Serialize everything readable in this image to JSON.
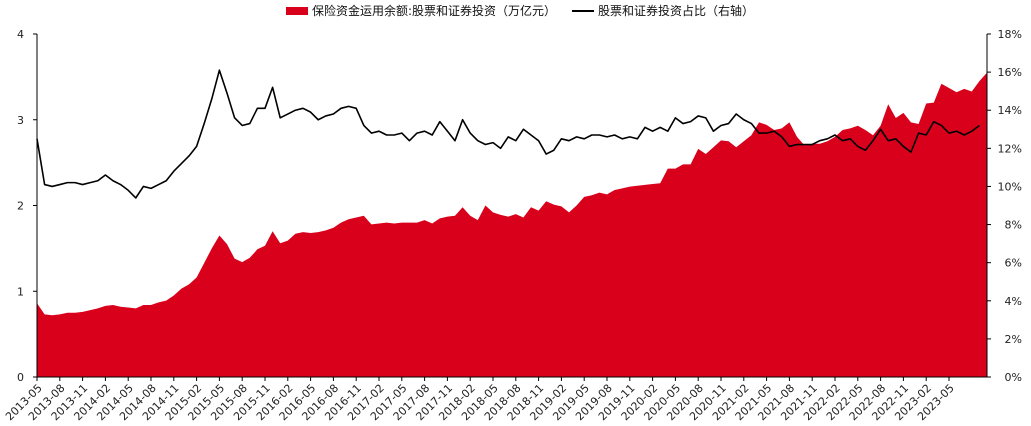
{
  "chart_data": {
    "type": "area+line",
    "title": "",
    "xlabel": "",
    "ylabel": "",
    "ylim_left": [
      0,
      4
    ],
    "yticks_left": [
      "0",
      "1",
      "2",
      "3",
      "4"
    ],
    "ylim_right": [
      0,
      18
    ],
    "yticks_right": [
      "0%",
      "2%",
      "4%",
      "6%",
      "8%",
      "10%",
      "12%",
      "14%",
      "16%",
      "18%"
    ],
    "legend_placement": "top-center",
    "grid": false,
    "x_tick_labels": [
      "2013-05",
      "2013-08",
      "2013-11",
      "2014-02",
      "2014-05",
      "2014-08",
      "2014-11",
      "2015-02",
      "2015-05",
      "2015-08",
      "2015-11",
      "2016-02",
      "2016-05",
      "2016-08",
      "2016-11",
      "2017-02",
      "2017-05",
      "2017-08",
      "2017-11",
      "2018-02",
      "2018-05",
      "2018-08",
      "2018-11",
      "2019-02",
      "2019-05",
      "2019-08",
      "2019-11",
      "2020-02",
      "2020-05",
      "2020-08",
      "2020-11",
      "2021-02",
      "2021-05",
      "2021-08",
      "2021-11",
      "2022-02",
      "2022-05",
      "2022-08",
      "2022-11",
      "2023-02",
      "2023-05"
    ],
    "series": [
      {
        "name": "保险资金运用余额:股票和证券投资（万亿元）",
        "kind": "area",
        "axis": "left",
        "color": "#d9001b",
        "values": [
          0.86,
          0.73,
          0.72,
          0.73,
          0.75,
          0.75,
          0.76,
          0.78,
          0.8,
          0.83,
          0.84,
          0.82,
          0.81,
          0.8,
          0.84,
          0.84,
          0.87,
          0.89,
          0.95,
          1.03,
          1.08,
          1.16,
          1.33,
          1.5,
          1.65,
          1.55,
          1.38,
          1.34,
          1.39,
          1.49,
          1.53,
          1.7,
          1.56,
          1.59,
          1.67,
          1.69,
          1.68,
          1.69,
          1.71,
          1.74,
          1.8,
          1.84,
          1.86,
          1.88,
          1.78,
          1.79,
          1.8,
          1.79,
          1.8,
          1.8,
          1.8,
          1.83,
          1.79,
          1.85,
          1.87,
          1.88,
          1.98,
          1.88,
          1.83,
          2.0,
          1.92,
          1.89,
          1.87,
          1.9,
          1.86,
          1.98,
          1.94,
          2.05,
          2.01,
          1.99,
          1.92,
          2.0,
          2.1,
          2.12,
          2.15,
          2.13,
          2.18,
          2.2,
          2.22,
          2.23,
          2.24,
          2.25,
          2.26,
          2.43,
          2.43,
          2.48,
          2.48,
          2.66,
          2.6,
          2.68,
          2.76,
          2.75,
          2.68,
          2.75,
          2.82,
          2.97,
          2.94,
          2.88,
          2.9,
          2.97,
          2.8,
          2.7,
          2.72,
          2.72,
          2.75,
          2.8,
          2.88,
          2.9,
          2.93,
          2.88,
          2.82,
          2.93,
          3.18,
          3.02,
          3.08,
          2.97,
          2.95,
          3.19,
          3.2,
          3.42,
          3.37,
          3.32,
          3.36,
          3.33,
          3.45,
          3.55
        ]
      },
      {
        "name": "股票和证券投资占比（右轴）",
        "kind": "line",
        "axis": "right",
        "color": "#000000",
        "values": [
          12.5,
          10.1,
          10.0,
          10.1,
          10.2,
          10.2,
          10.1,
          10.2,
          10.3,
          10.6,
          10.3,
          10.1,
          9.8,
          9.4,
          10.0,
          9.9,
          10.1,
          10.3,
          10.8,
          11.2,
          11.6,
          12.1,
          13.3,
          14.6,
          16.1,
          14.9,
          13.6,
          13.2,
          13.3,
          14.1,
          14.1,
          15.2,
          13.6,
          13.8,
          14.0,
          14.1,
          13.9,
          13.5,
          13.7,
          13.8,
          14.1,
          14.2,
          14.1,
          13.2,
          12.8,
          12.9,
          12.7,
          12.7,
          12.8,
          12.4,
          12.8,
          12.9,
          12.7,
          13.4,
          12.9,
          12.4,
          13.5,
          12.8,
          12.4,
          12.2,
          12.3,
          12.0,
          12.6,
          12.4,
          13.0,
          12.7,
          12.4,
          11.7,
          11.9,
          12.5,
          12.4,
          12.6,
          12.5,
          12.7,
          12.7,
          12.6,
          12.7,
          12.5,
          12.6,
          12.5,
          13.1,
          12.9,
          13.1,
          12.9,
          13.6,
          13.3,
          13.4,
          13.7,
          13.6,
          12.9,
          13.2,
          13.3,
          13.8,
          13.5,
          13.3,
          12.8,
          12.8,
          12.9,
          12.6,
          12.1,
          12.2,
          12.2,
          12.2,
          12.4,
          12.5,
          12.7,
          12.4,
          12.5,
          12.1,
          11.9,
          12.4,
          13.0,
          12.4,
          12.5,
          12.1,
          11.8,
          12.8,
          12.7,
          13.4,
          13.2,
          12.8,
          12.9,
          12.7,
          12.9,
          13.2
        ]
      }
    ]
  }
}
